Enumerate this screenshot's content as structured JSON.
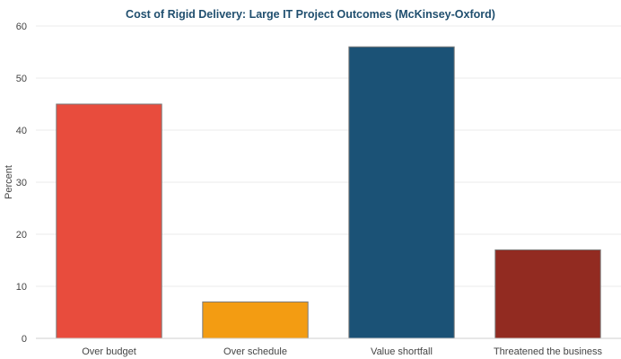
{
  "chart_data": {
    "type": "bar",
    "title": "Cost of Rigid Delivery: Large IT Project Outcomes (McKinsey-Oxford)",
    "xlabel": "",
    "ylabel": "Percent",
    "ylim": [
      0,
      60
    ],
    "yticks": [
      0,
      10,
      20,
      30,
      40,
      50,
      60
    ],
    "grid": true,
    "legend": "none",
    "categories": [
      "Over budget",
      "Over schedule",
      "Value shortfall",
      "Threatened the business"
    ],
    "values": [
      45,
      7,
      56,
      17
    ],
    "colors": [
      "#e84c3d",
      "#f39c12",
      "#1b5276",
      "#922b21"
    ]
  }
}
